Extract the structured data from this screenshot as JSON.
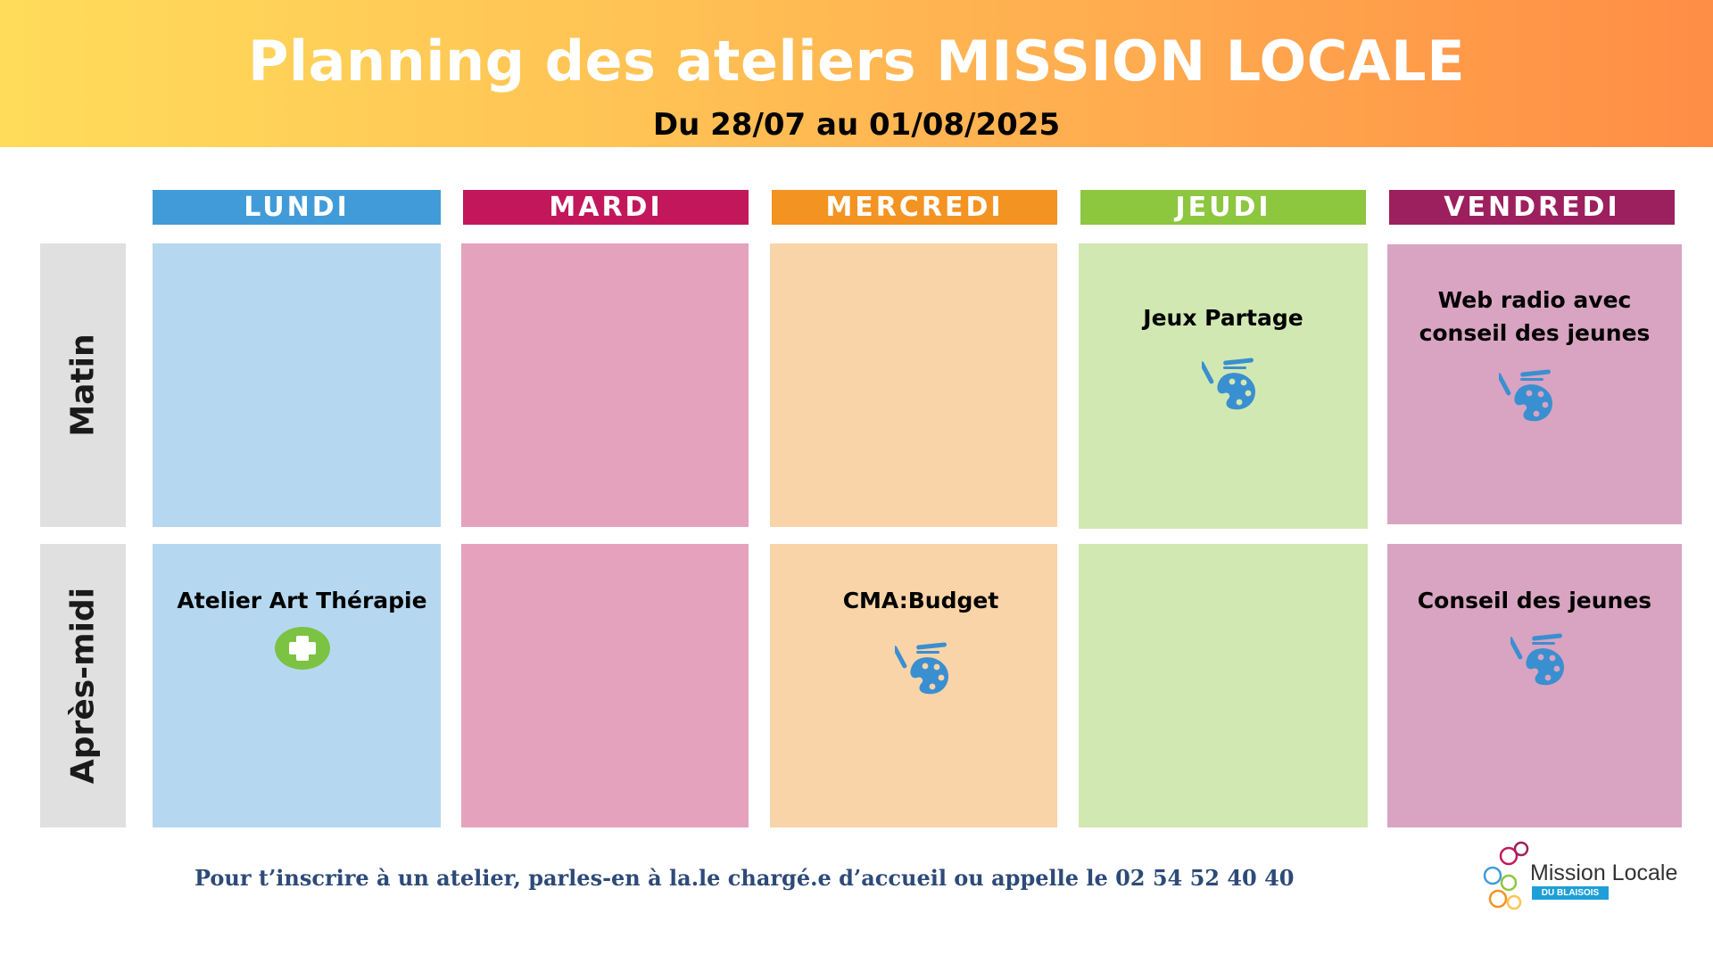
{
  "header": {
    "title": "Planning des ateliers MISSION LOCALE",
    "subtitle": "Du 28/07 au 01/08/2025"
  },
  "days": [
    {
      "label": "LUNDI",
      "color": "#429bd9"
    },
    {
      "label": "MARDI",
      "color": "#c2185b"
    },
    {
      "label": "MERCREDI",
      "color": "#f39321"
    },
    {
      "label": "JEUDI",
      "color": "#8dc63f"
    },
    {
      "label": "VENDREDI",
      "color": "#9c1f5e"
    }
  ],
  "rows": [
    {
      "label": "Matin"
    },
    {
      "label": "Après-midi"
    }
  ],
  "cell_colors": [
    "#b5d8f0",
    "#e5a2bc",
    "#f9d4a8",
    "#d2e8b2",
    "#d8a4c2"
  ],
  "schedule": {
    "matin": {
      "lundi": {
        "text": "",
        "icon": ""
      },
      "mardi": {
        "text": "",
        "icon": ""
      },
      "mercredi": {
        "text": "",
        "icon": ""
      },
      "jeudi": {
        "text": "Jeux Partage",
        "icon": "palette-icon"
      },
      "vendredi": {
        "text_line1": "Web radio avec",
        "text_line2": "conseil des jeunes",
        "icon": "palette-icon"
      }
    },
    "apres_midi": {
      "lundi": {
        "text": "Atelier Art Thérapie",
        "icon": "health-cross-icon"
      },
      "mardi": {
        "text": "",
        "icon": ""
      },
      "mercredi": {
        "text": "CMA:Budget",
        "icon": "palette-icon"
      },
      "jeudi": {
        "text": "",
        "icon": ""
      },
      "vendredi": {
        "text": "Conseil des jeunes",
        "icon": "palette-icon"
      }
    }
  },
  "icon_colors": {
    "palette": "#3a8fd0",
    "health_cross": "#7cc243"
  },
  "footer": {
    "text": "Pour t’inscrire à un atelier, parles-en à la.le chargé.e d’accueil ou appelle le 02 54 52 40 40"
  },
  "logo": {
    "name": "Mission Locale",
    "badge": "DU BLAISOIS"
  }
}
